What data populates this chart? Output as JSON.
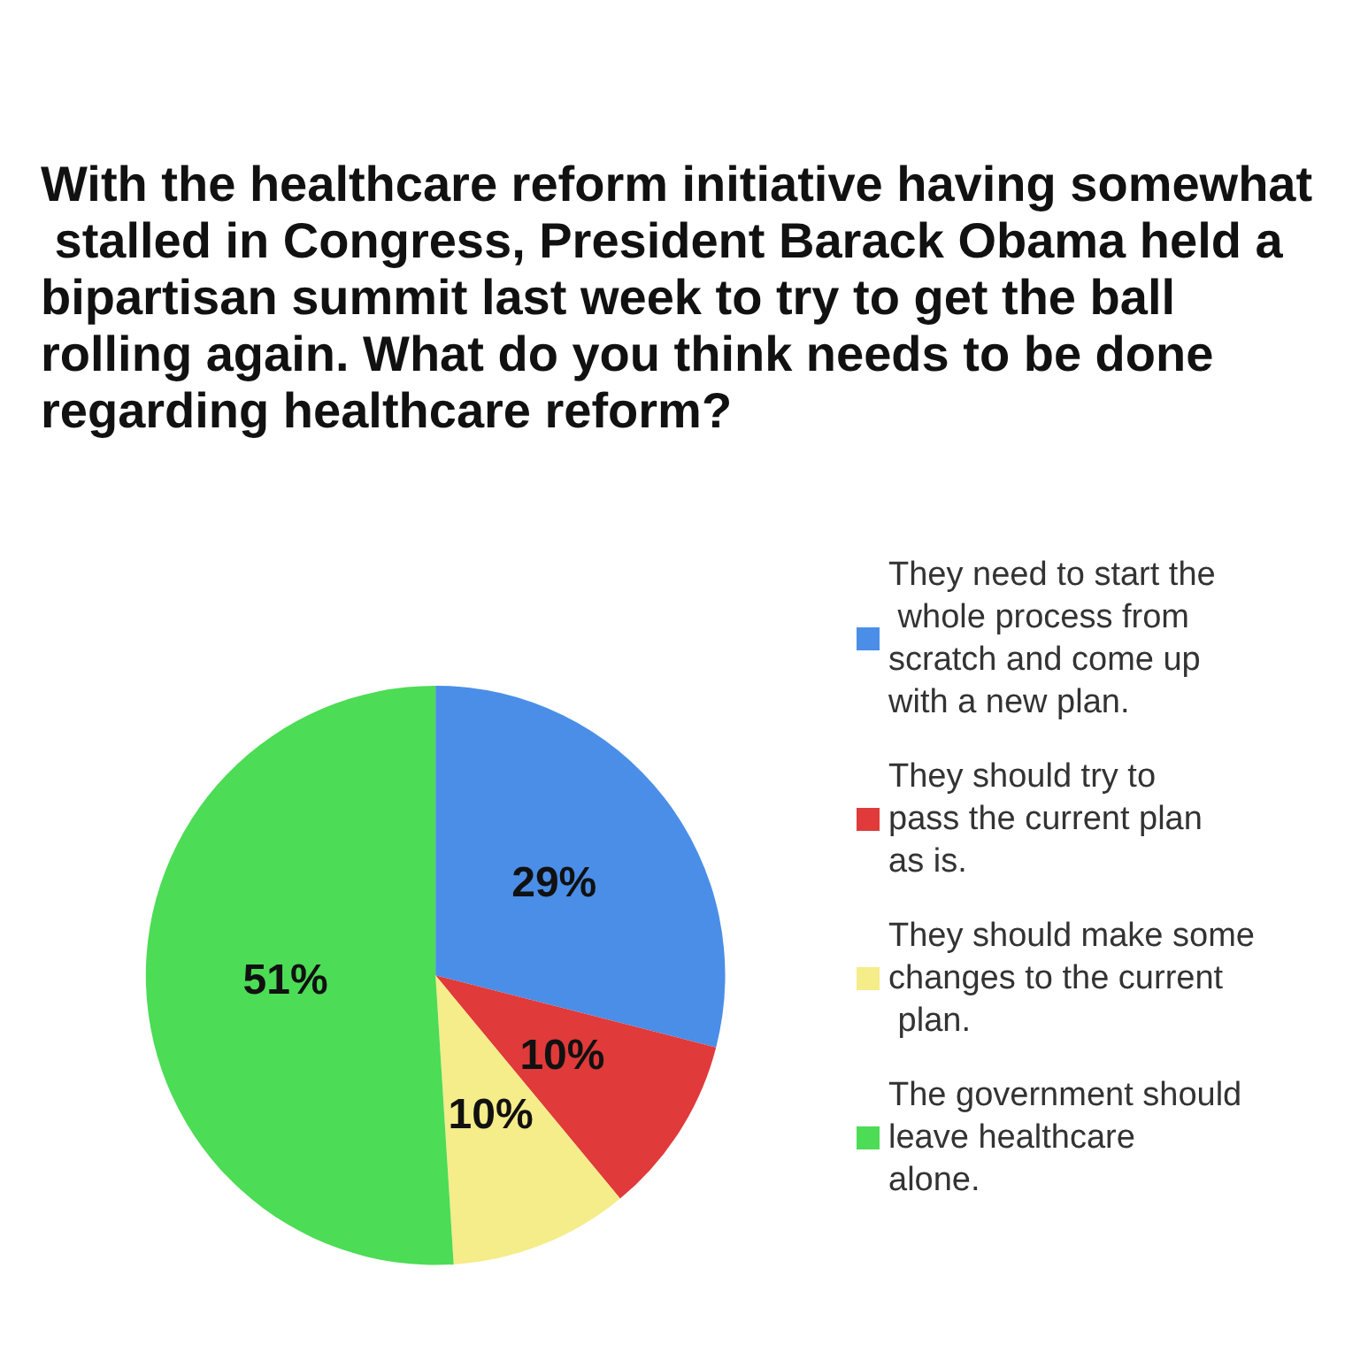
{
  "chart_data": {
    "type": "pie",
    "title": "With the healthcare reform initiative having somewhat stalled in Congress, President Barack Obama held a bipartisan summit last week to try to get the ball rolling again. What do you think needs to be done regarding healthcare reform?",
    "categories": [
      "They need to start the whole process from scratch and come up with a new plan.",
      "They should try to pass the current plan as is.",
      "They should make some changes to the current plan.",
      "The government should leave healthcare alone."
    ],
    "values": [
      29,
      10,
      10,
      51
    ],
    "colors": [
      "#4a8ee8",
      "#e03a3a",
      "#f5ec8a",
      "#4cdc55"
    ],
    "value_labels": [
      "29%",
      "10%",
      "10%",
      "51%"
    ],
    "legend": "right"
  }
}
